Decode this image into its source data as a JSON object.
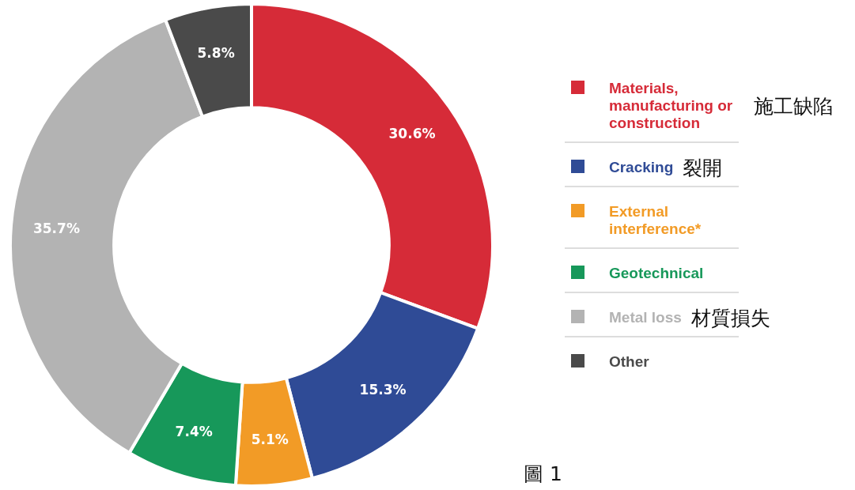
{
  "chart_data": {
    "type": "donut",
    "categories": [
      "Materials, manufacturing or construction",
      "Cracking",
      "External interference*",
      "Geotechnical",
      "Metal loss",
      "Other"
    ],
    "values": [
      30.6,
      15.3,
      5.1,
      7.4,
      35.7,
      5.8
    ],
    "value_labels": [
      "30.6%",
      "15.3%",
      "5.1%",
      "7.4%",
      "35.7%",
      "5.8%"
    ],
    "colors": [
      "#d62b38",
      "#2f4b96",
      "#f29b26",
      "#17985a",
      "#b3b3b3",
      "#4a4a4a"
    ],
    "legend": "right",
    "annotations": [
      "施工缺陷",
      "裂開",
      "材質損失",
      "圖 1"
    ]
  }
}
